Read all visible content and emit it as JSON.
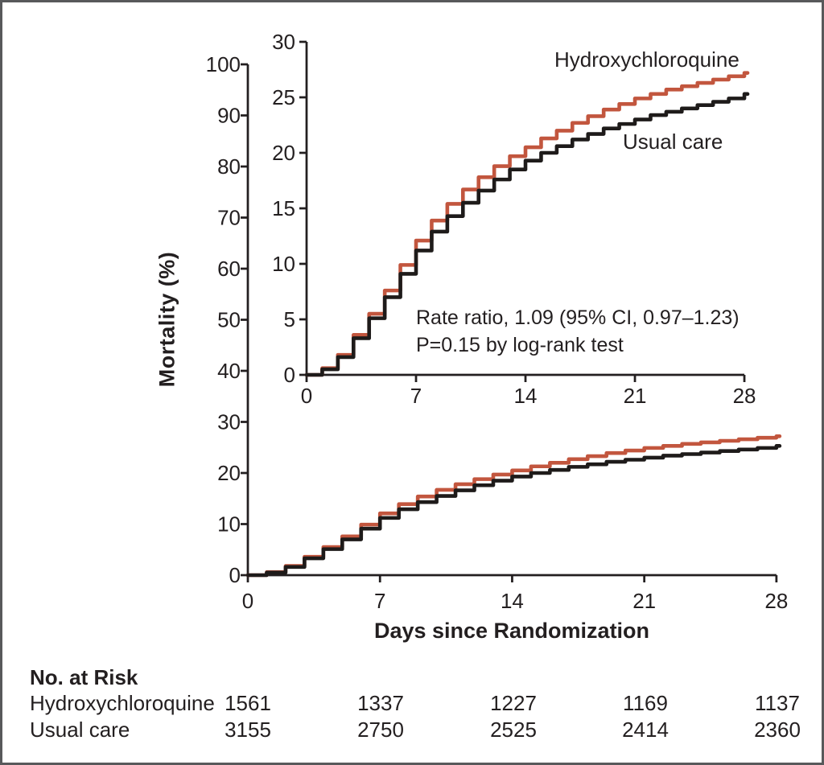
{
  "chart_data": {
    "type": "line",
    "step": true,
    "title": "",
    "xlabel": "Days since Randomization",
    "ylabel": "Mortality (%)",
    "grid": false,
    "legend_position": "inline-labels",
    "days": [
      0,
      1,
      2,
      3,
      4,
      5,
      6,
      7,
      8,
      9,
      10,
      11,
      12,
      13,
      14,
      15,
      16,
      17,
      18,
      19,
      20,
      21,
      22,
      23,
      24,
      25,
      26,
      27,
      28
    ],
    "xticks": [
      0,
      7,
      14,
      21,
      28
    ],
    "axes": {
      "main": {
        "xlim": [
          0,
          28
        ],
        "ylim": [
          0,
          100
        ],
        "yticks": [
          0,
          10,
          20,
          30,
          40,
          50,
          60,
          70,
          80,
          90,
          100
        ]
      },
      "inset": {
        "xlim": [
          0,
          28
        ],
        "ylim": [
          0,
          30
        ],
        "yticks": [
          0,
          5,
          10,
          15,
          20,
          25,
          30
        ]
      }
    },
    "series": [
      {
        "name": "Hydroxychloroquine",
        "color": "#c2563e",
        "final_value_pct": 27.2,
        "y": [
          0,
          0.6,
          1.8,
          3.6,
          5.5,
          7.6,
          9.9,
          12.1,
          13.9,
          15.4,
          16.7,
          17.8,
          18.8,
          19.7,
          20.5,
          21.3,
          22.0,
          22.7,
          23.3,
          23.9,
          24.4,
          24.9,
          25.3,
          25.7,
          26.0,
          26.3,
          26.6,
          26.9,
          27.2
        ]
      },
      {
        "name": "Usual care",
        "color": "#1e1b1a",
        "final_value_pct": 25.3,
        "y": [
          0,
          0.5,
          1.6,
          3.3,
          5.1,
          7.0,
          9.1,
          11.2,
          12.9,
          14.3,
          15.5,
          16.6,
          17.6,
          18.5,
          19.3,
          20.0,
          20.6,
          21.2,
          21.7,
          22.2,
          22.6,
          23.0,
          23.4,
          23.7,
          24.0,
          24.3,
          24.6,
          24.9,
          25.3
        ]
      }
    ],
    "annotation": [
      "Rate ratio, 1.09 (95% CI, 0.97–1.23)",
      "P=0.15 by log-rank test"
    ]
  },
  "risk_table": {
    "title": "No. at Risk",
    "days": [
      0,
      7,
      14,
      21,
      28
    ],
    "rows": [
      {
        "label": "Hydroxychloroquine",
        "values": [
          1561,
          1337,
          1227,
          1169,
          1137
        ]
      },
      {
        "label": "Usual care",
        "values": [
          3155,
          2750,
          2525,
          2414,
          2360
        ]
      }
    ]
  },
  "figure": {
    "ink_color": "#231f20",
    "border_color": "#58595b",
    "background": "#ffffff"
  }
}
